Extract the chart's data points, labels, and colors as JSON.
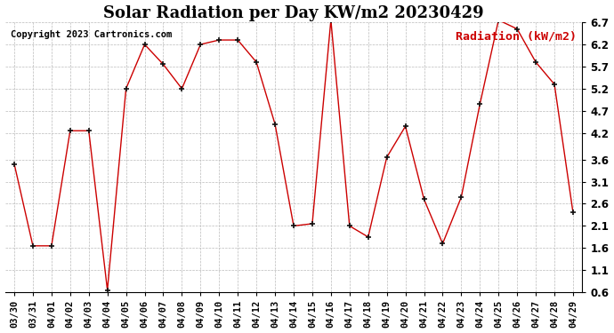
{
  "title": "Solar Radiation per Day KW/m2 20230429",
  "copyright": "Copyright 2023 Cartronics.com",
  "legend_label": "Radiation (kW/m2)",
  "dates": [
    "03/30",
    "03/31",
    "04/01",
    "04/02",
    "04/03",
    "04/04",
    "04/05",
    "04/06",
    "04/07",
    "04/08",
    "04/09",
    "04/10",
    "04/11",
    "04/12",
    "04/13",
    "04/14",
    "04/15",
    "04/16",
    "04/17",
    "04/18",
    "04/19",
    "04/20",
    "04/21",
    "04/22",
    "04/23",
    "04/24",
    "04/25",
    "04/26",
    "04/27",
    "04/28",
    "04/29"
  ],
  "values": [
    3.5,
    1.65,
    1.65,
    4.25,
    4.25,
    0.65,
    5.2,
    6.2,
    5.75,
    5.2,
    6.2,
    6.3,
    6.3,
    5.8,
    4.4,
    2.1,
    2.15,
    6.75,
    2.1,
    1.85,
    3.65,
    4.35,
    2.7,
    1.7,
    2.75,
    4.85,
    6.75,
    6.55,
    5.8,
    5.3,
    2.4
  ],
  "ylim": [
    0.6,
    6.7
  ],
  "yticks": [
    0.6,
    1.1,
    1.6,
    2.1,
    2.6,
    3.1,
    3.6,
    4.2,
    4.7,
    5.2,
    5.7,
    6.2,
    6.7
  ],
  "line_color": "#cc0000",
  "marker_color": "#111111",
  "background_color": "#ffffff",
  "grid_color": "#bbbbbb",
  "title_fontsize": 13,
  "copyright_fontsize": 7.5,
  "legend_fontsize": 9.5,
  "tick_fontsize": 7.5,
  "ytick_fontsize": 8.5
}
